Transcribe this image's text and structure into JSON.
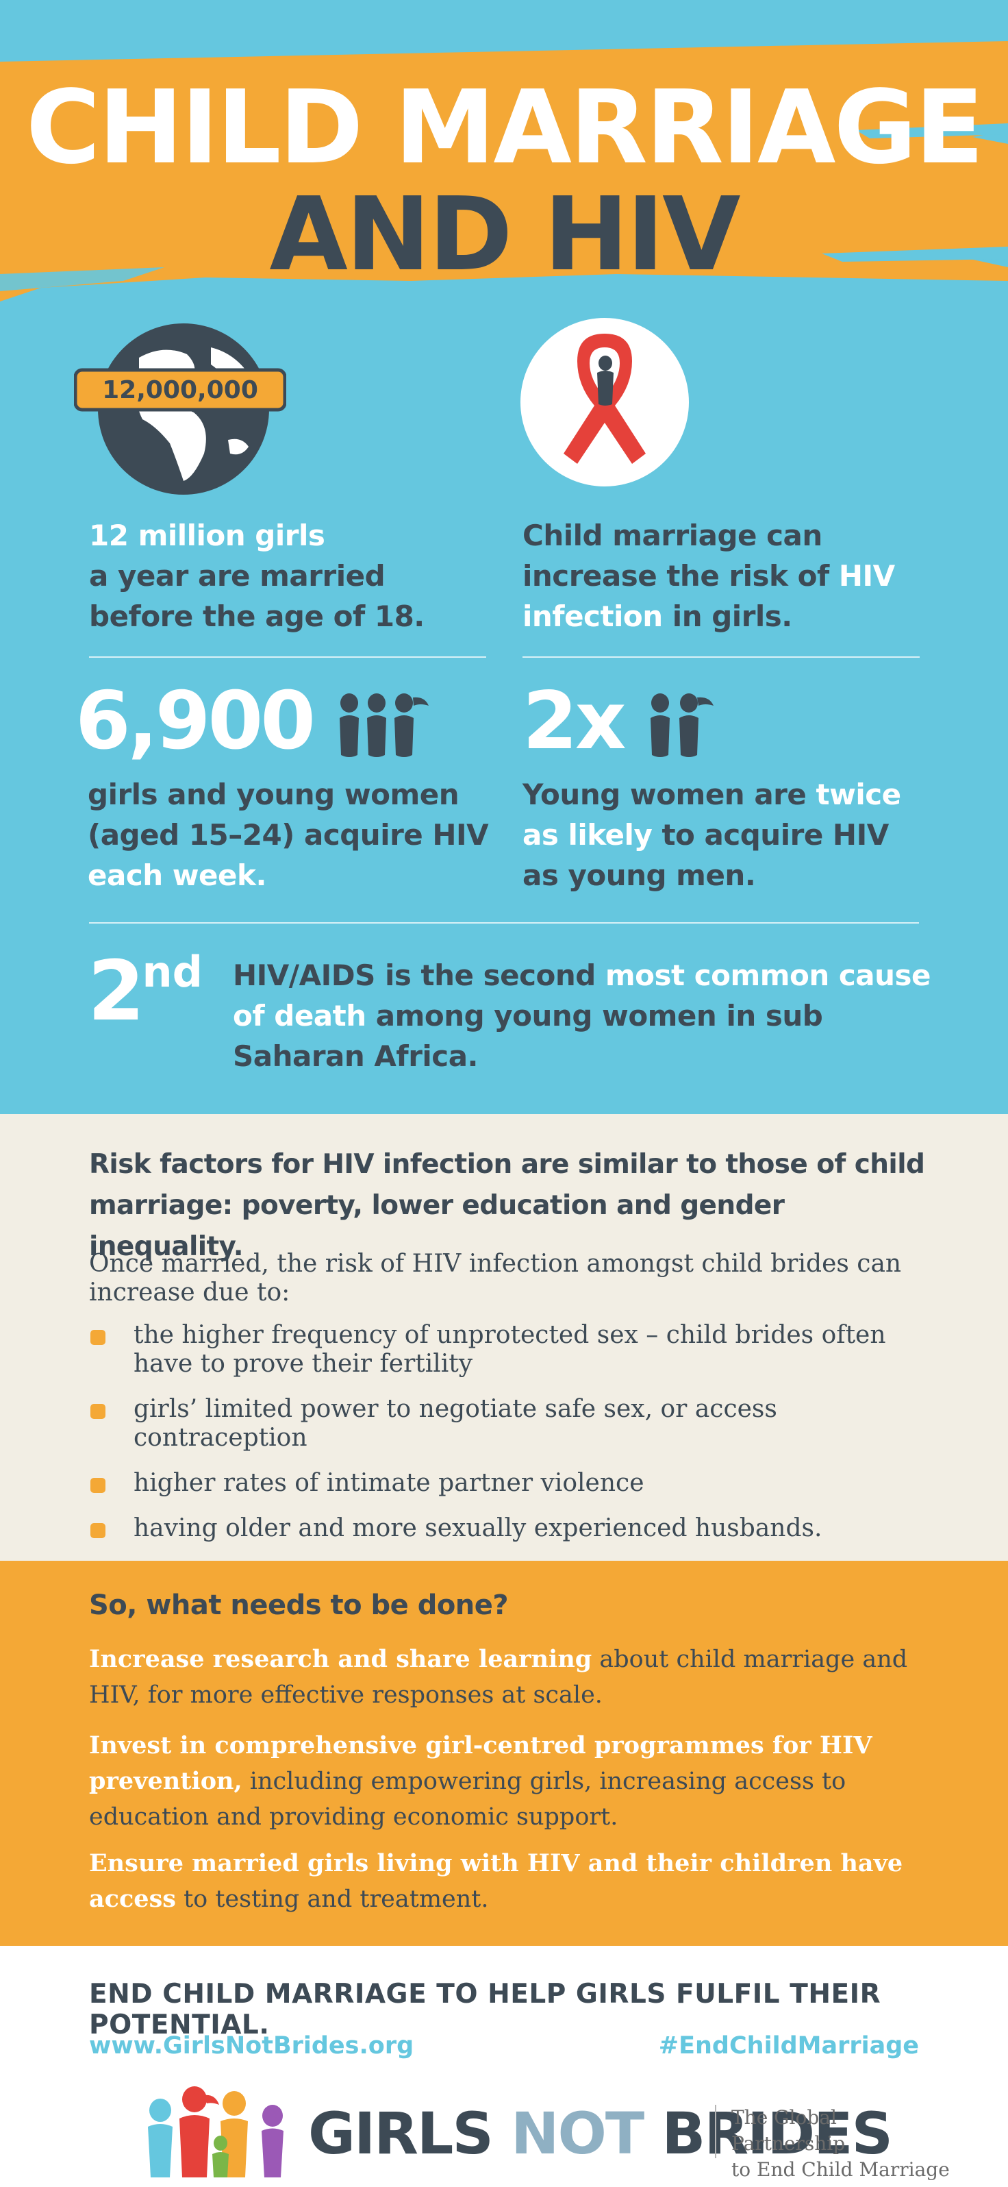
{
  "header": {
    "title_line1": "CHILD MARRIAGE",
    "title_line2": "AND HIV"
  },
  "stats": {
    "globe_badge": "12,000,000",
    "stat1": {
      "highlight": "12 million girls",
      "rest": "a year are married before the age of 18."
    },
    "stat2": {
      "pre": "Child marriage can increase the risk of ",
      "highlight": "HIV infection",
      "post": " in girls."
    },
    "stat3": {
      "number": "6,900",
      "dark": "girls and young women (aged 15–24) acquire HIV ",
      "highlight": "each week."
    },
    "stat4": {
      "number": "2x",
      "pre": "Young women are ",
      "highlight": "twice as likely",
      "post": " to acquire HIV as young men."
    },
    "stat5": {
      "number": "2",
      "suffix": "nd",
      "pre": "HIV/AIDS is the second ",
      "highlight": "most common cause of death",
      "post": " among young women in sub Saharan Africa."
    }
  },
  "risk": {
    "heading": "Risk factors for HIV infection are similar to those of child marriage: poverty, lower education and gender inequality.",
    "intro": "Once married, the risk of HIV infection amongst child brides can increase due to:",
    "items": [
      "the higher frequency of unprotected sex – child brides often have to prove their fertility",
      "girls’ limited power to negotiate safe sex, or access contraception",
      "higher rates of intimate partner violence",
      "having older and more sexually experienced husbands."
    ]
  },
  "actions": {
    "heading": "So, what needs to be done?",
    "items": [
      {
        "highlight": "Increase research and share learning",
        "rest": " about child marriage and HIV, for more effective responses at scale."
      },
      {
        "highlight": "Invest in comprehensive girl-centred programmes for HIV prevention,",
        "rest": " including  empowering  girls, increasing access to education and providing economic support."
      },
      {
        "highlight": "Ensure married girls living with HIV and their children have access",
        "rest": " to testing and treatment."
      }
    ]
  },
  "footer": {
    "cta": "END CHILD MARRIAGE TO HELP GIRLS FULFIL THEIR POTENTIAL.",
    "website": "www.GirlsNotBrides.org",
    "hashtag": "#EndChildMarriage",
    "logo_girls": "GIRLS",
    "logo_not": "NOT",
    "logo_brides": "BRIDES",
    "tagline_line1": "The Global Partnership",
    "tagline_line2": "to End Child Marriage"
  },
  "colors": {
    "sky": "#65c7df",
    "orange": "#f4a836",
    "navy": "#3d4a55",
    "cream": "#f2eee4",
    "ribbon_red": "#e5413a"
  },
  "icons": [
    "globe-icon",
    "red-ribbon-icon",
    "girls-group-icon",
    "girl-pair-icon",
    "girls-not-brides-logo-icon"
  ]
}
